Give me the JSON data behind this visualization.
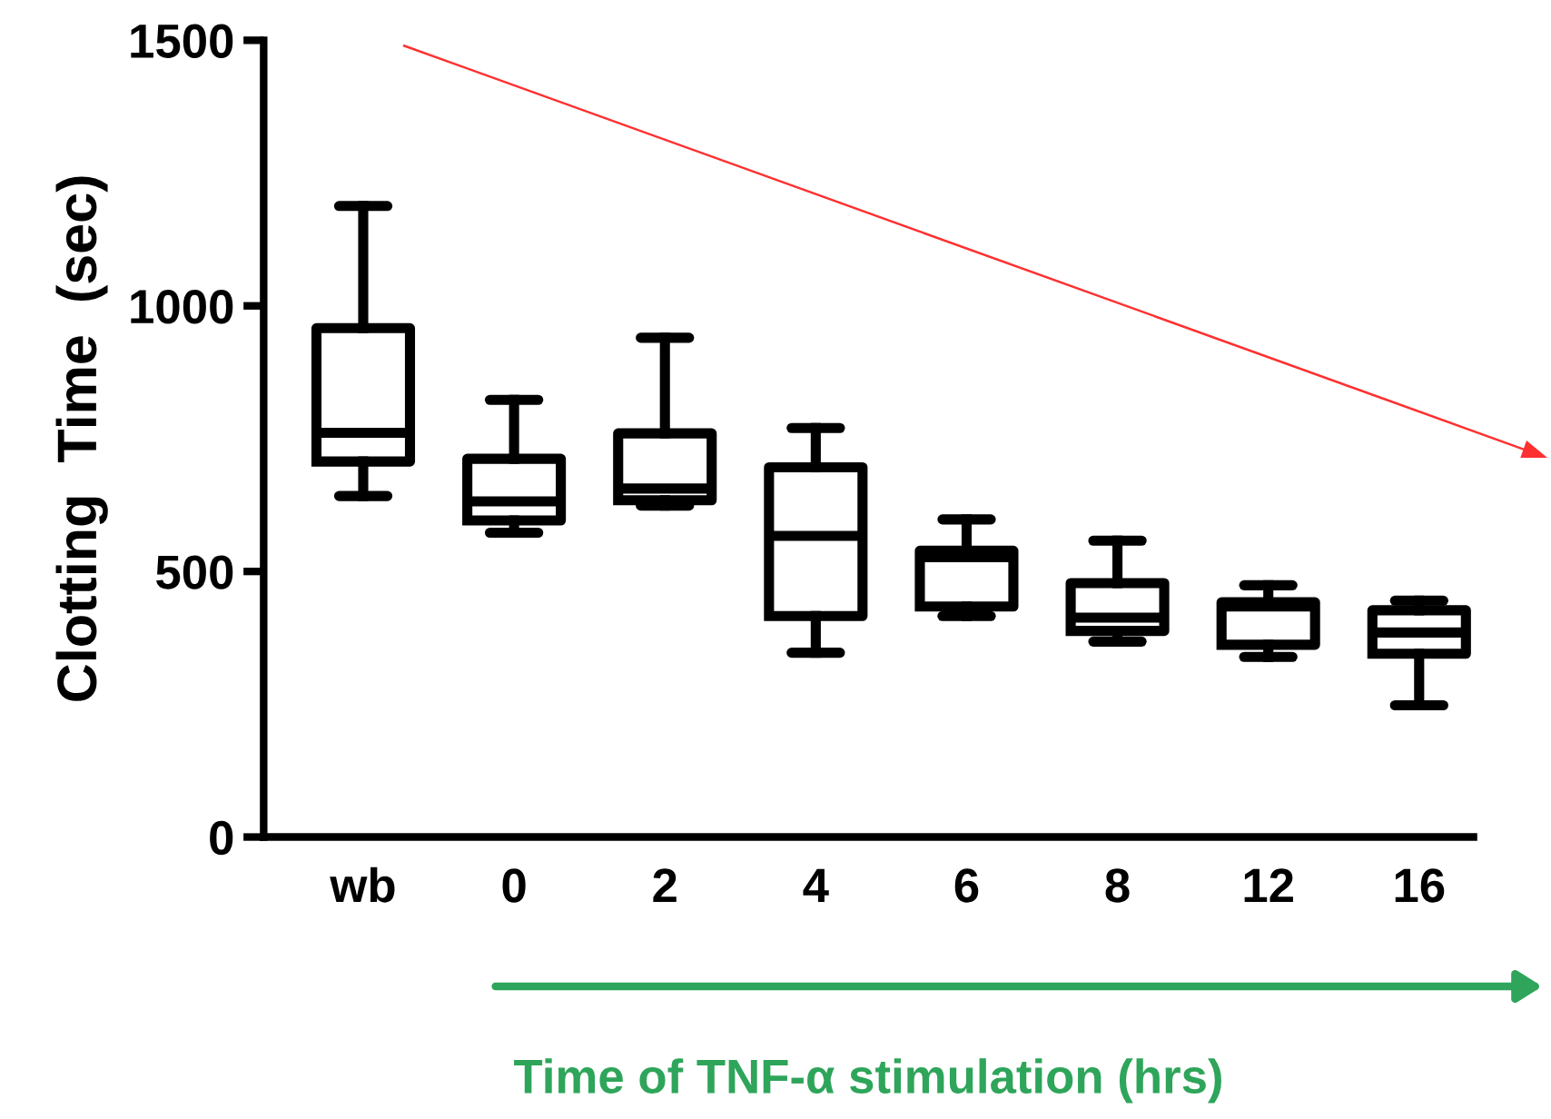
{
  "chart_data": {
    "type": "box",
    "ylabel": "Clotting  Time  (sec)",
    "xlabel": "Time of TNF-α stimulation (hrs)",
    "categories": [
      "wb",
      "0",
      "2",
      "4",
      "6",
      "8",
      "12",
      "16"
    ],
    "boxes": [
      {
        "low": 642,
        "q1": 707,
        "median": 761,
        "q3": 958,
        "high": 1188
      },
      {
        "low": 573,
        "q1": 596,
        "median": 632,
        "q3": 712,
        "high": 823
      },
      {
        "low": 624,
        "q1": 634,
        "median": 656,
        "q3": 760,
        "high": 940
      },
      {
        "low": 347,
        "q1": 416,
        "median": 567,
        "q3": 696,
        "high": 770
      },
      {
        "low": 416,
        "q1": 434,
        "median": 527,
        "q3": 539,
        "high": 598
      },
      {
        "low": 368,
        "q1": 388,
        "median": 413,
        "q3": 478,
        "high": 558
      },
      {
        "low": 339,
        "q1": 362,
        "median": 434,
        "q3": 442,
        "high": 474
      },
      {
        "low": 248,
        "q1": 345,
        "median": 385,
        "q3": 427,
        "high": 445
      }
    ],
    "color": "#000000",
    "ylim": [
      0,
      1500
    ],
    "yticks": [
      0,
      500,
      1000,
      1500
    ],
    "grid": false
  }
}
